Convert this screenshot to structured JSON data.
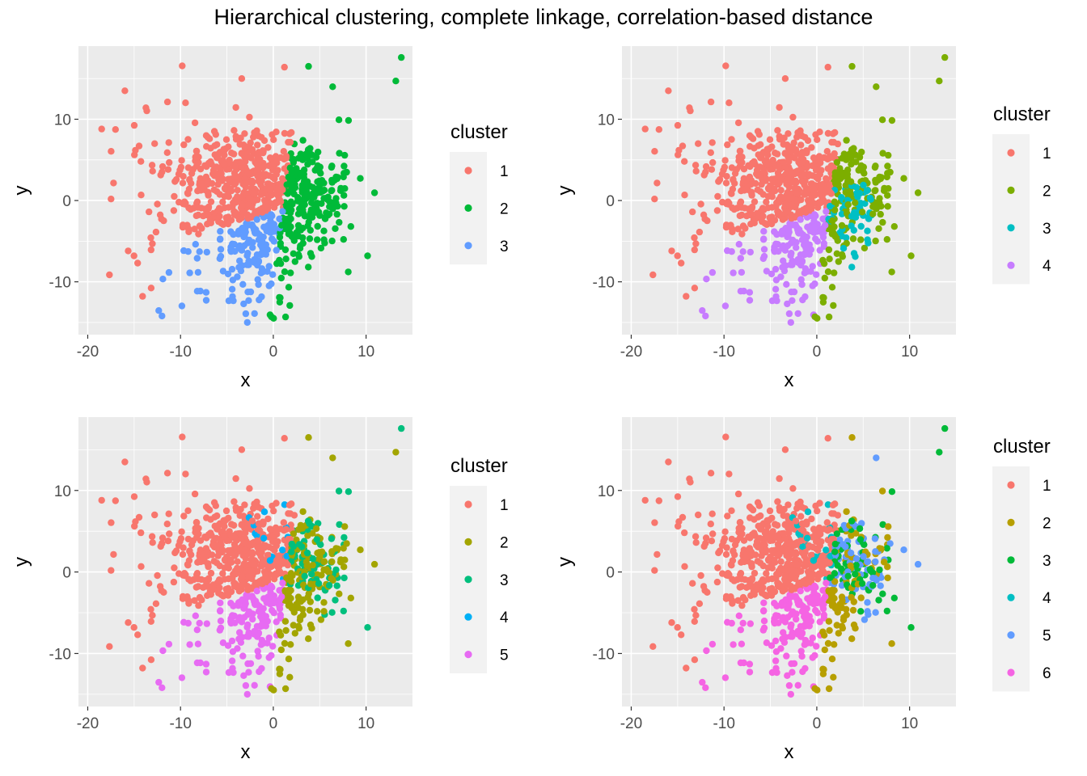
{
  "figure": {
    "title": "Hierarchical clustering, complete linkage,  correlation-based distance"
  },
  "chart_data": [
    {
      "type": "scatter",
      "xlabel": "x",
      "ylabel": "y",
      "xlim": [
        -21,
        15
      ],
      "ylim": [
        -16.5,
        19
      ],
      "xticks": [
        -20,
        -10,
        0,
        10
      ],
      "yticks": [
        -10,
        0,
        10
      ],
      "grid": true,
      "legend": {
        "title": "cluster",
        "position": "right",
        "entries": [
          "1",
          "2",
          "3"
        ]
      },
      "colors": [
        "#F8766D",
        "#00BA38",
        "#619CFF"
      ],
      "k": 3
    },
    {
      "type": "scatter",
      "xlabel": "x",
      "ylabel": "y",
      "xlim": [
        -21,
        15
      ],
      "ylim": [
        -16.5,
        19
      ],
      "xticks": [
        -20,
        -10,
        0,
        10
      ],
      "yticks": [
        -10,
        0,
        10
      ],
      "grid": true,
      "legend": {
        "title": "cluster",
        "position": "right",
        "entries": [
          "1",
          "2",
          "3",
          "4"
        ]
      },
      "colors": [
        "#F8766D",
        "#7CAE00",
        "#00BFC4",
        "#C77CFF"
      ],
      "k": 4
    },
    {
      "type": "scatter",
      "xlabel": "x",
      "ylabel": "y",
      "xlim": [
        -21,
        15
      ],
      "ylim": [
        -16.5,
        19
      ],
      "xticks": [
        -20,
        -10,
        0,
        10
      ],
      "yticks": [
        -10,
        0,
        10
      ],
      "grid": true,
      "legend": {
        "title": "cluster",
        "position": "right",
        "entries": [
          "1",
          "2",
          "3",
          "4",
          "5"
        ]
      },
      "colors": [
        "#F8766D",
        "#A3A500",
        "#00BF7D",
        "#00B0F6",
        "#E76BF3"
      ],
      "k": 5
    },
    {
      "type": "scatter",
      "xlabel": "x",
      "ylabel": "y",
      "xlim": [
        -21,
        15
      ],
      "ylim": [
        -16.5,
        19
      ],
      "xticks": [
        -20,
        -10,
        0,
        10
      ],
      "yticks": [
        -10,
        0,
        10
      ],
      "grid": true,
      "legend": {
        "title": "cluster",
        "position": "right",
        "entries": [
          "1",
          "2",
          "3",
          "4",
          "5",
          "6"
        ]
      },
      "colors": [
        "#F8766D",
        "#B79F00",
        "#00BA38",
        "#00BFC4",
        "#619CFF",
        "#F564E3"
      ],
      "k": 6
    }
  ]
}
